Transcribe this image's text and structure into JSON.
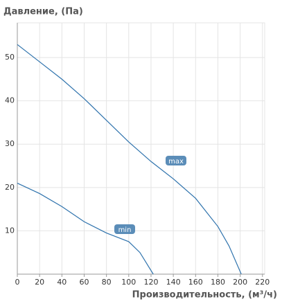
{
  "chart_data": {
    "type": "line",
    "title": "Давление, (Па)",
    "x_label": "Производительность, (м³/ч)",
    "series": [
      {
        "name": "max",
        "color": "#2f73ad",
        "x": [
          0,
          20,
          40,
          60,
          80,
          100,
          120,
          140,
          160,
          180,
          190,
          201
        ],
        "values": [
          53,
          49,
          45,
          40.5,
          35.5,
          30.5,
          26,
          22,
          17.5,
          11,
          6.5,
          0
        ]
      },
      {
        "name": "min",
        "color": "#2f73ad",
        "x": [
          0,
          20,
          40,
          60,
          80,
          100,
          110,
          116,
          122
        ],
        "values": [
          21,
          18.6,
          15.6,
          12.1,
          9.5,
          7.5,
          5,
          2.5,
          0
        ]
      }
    ],
    "xlim": [
      0,
      222
    ],
    "xticks": [
      0,
      20,
      40,
      60,
      80,
      100,
      120,
      140,
      160,
      180,
      200,
      220
    ],
    "ylim": [
      0,
      58
    ],
    "yticks": [
      10,
      20,
      30,
      40,
      50
    ],
    "grid": true
  }
}
